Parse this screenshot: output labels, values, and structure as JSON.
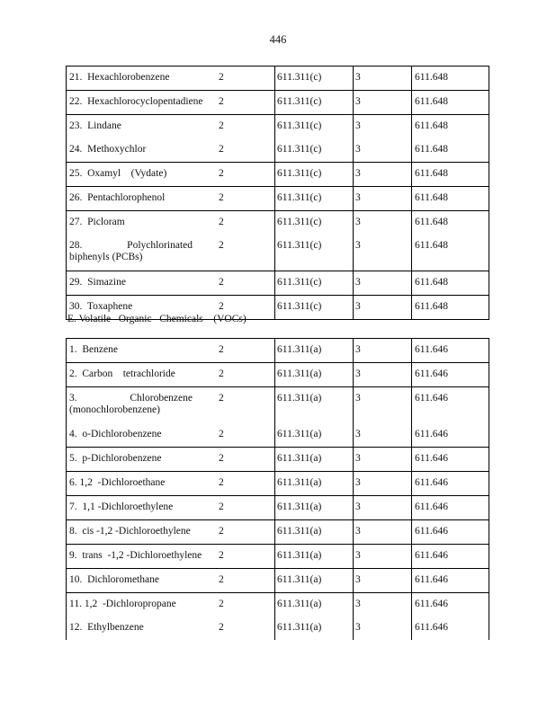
{
  "page_number": "446",
  "table1": {
    "groups": [
      [
        {
          "name": "21.  Hexachlorobenzene",
          "c2": "2",
          "c3": "611.311(c)",
          "c4": "3",
          "c5": "611.648"
        }
      ],
      [
        {
          "name": "22.  Hexachlorocyclopentadiene",
          "c2": "2",
          "c3": "611.311(c)",
          "c4": "3",
          "c5": "611.648"
        }
      ],
      [
        {
          "name": "23.  Lindane",
          "c2": "2",
          "c3": "611.311(c)",
          "c4": "3",
          "c5": "611.648"
        },
        {
          "name": "24.  Methoxychlor",
          "c2": "2",
          "c3": "611.311(c)",
          "c4": "3",
          "c5": "611.648"
        }
      ],
      [
        {
          "name": "25.  Oxamyl    (Vydate)",
          "c2": "2",
          "c3": "611.311(c)",
          "c4": "3",
          "c5": "611.648"
        }
      ],
      [
        {
          "name": "26.  Pentachlorophenol",
          "c2": "2",
          "c3": "611.311(c)",
          "c4": "3",
          "c5": "611.648"
        }
      ],
      [
        {
          "name": "27.  Picloram",
          "c2": "2",
          "c3": "611.311(c)",
          "c4": "3",
          "c5": "611.648"
        },
        {
          "name": "28. Polychlorinated biphenyls (PCBs)",
          "c2": "2",
          "c3": "611.311(c)",
          "c4": "3",
          "c5": "611.648",
          "wrap": true
        }
      ],
      [
        {
          "name": "29.  Simazine",
          "c2": "2",
          "c3": "611.311(c)",
          "c4": "3",
          "c5": "611.648"
        }
      ],
      [
        {
          "name": "30.  Toxaphene",
          "c2": "2",
          "c3": "611.311(c)",
          "c4": "3",
          "c5": "611.648"
        }
      ]
    ]
  },
  "section_heading": "E. Volatile   Organic   Chemicals    (VOCs)",
  "table2": {
    "groups": [
      [
        {
          "name": "1.  Benzene",
          "c2": "2",
          "c3": "611.311(a)",
          "c4": "3",
          "c5": "611.646"
        }
      ],
      [
        {
          "name": "2.  Carbon    tetrachloride",
          "c2": "2",
          "c3": "611.311(a)",
          "c4": "3",
          "c5": "611.646"
        }
      ],
      [
        {
          "name": "3. Chlorobenzene (monochlorobenzene)",
          "c2": "2",
          "c3": "611.311(a)",
          "c4": "3",
          "c5": "611.646",
          "wrap": true
        },
        {
          "name": "4.  o-Dichlorobenzene",
          "c2": "2",
          "c3": "611.311(a)",
          "c4": "3",
          "c5": "611.646"
        }
      ],
      [
        {
          "name": "5.  p-Dichlorobenzene",
          "c2": "2",
          "c3": "611.311(a)",
          "c4": "3",
          "c5": "611.646"
        }
      ],
      [
        {
          "name": "6. 1,2  -Dichloroethane",
          "c2": "2",
          "c3": "611.311(a)",
          "c4": "3",
          "c5": "611.646"
        }
      ],
      [
        {
          "name": "7.  1,1 -Dichloroethylene",
          "c2": "2",
          "c3": "611.311(a)",
          "c4": "3",
          "c5": "611.646"
        }
      ],
      [
        {
          "name": "8.  cis -1,2 -Dichloroethylene",
          "c2": "2",
          "c3": "611.311(a)",
          "c4": "3",
          "c5": "611.646"
        }
      ],
      [
        {
          "name": "9.  trans  -1,2 -Dichloroethylene",
          "c2": "2",
          "c3": "611.311(a)",
          "c4": "3",
          "c5": "611.646"
        }
      ],
      [
        {
          "name": "10.  Dichloromethane",
          "c2": "2",
          "c3": "611.311(a)",
          "c4": "3",
          "c5": "611.646"
        }
      ],
      [
        {
          "name": "11. 1,2  -Dichloropropane",
          "c2": "2",
          "c3": "611.311(a)",
          "c4": "3",
          "c5": "611.646"
        },
        {
          "name": "12.  Ethylbenzene",
          "c2": "2",
          "c3": "611.311(a)",
          "c4": "3",
          "c5": "611.646"
        }
      ]
    ]
  }
}
